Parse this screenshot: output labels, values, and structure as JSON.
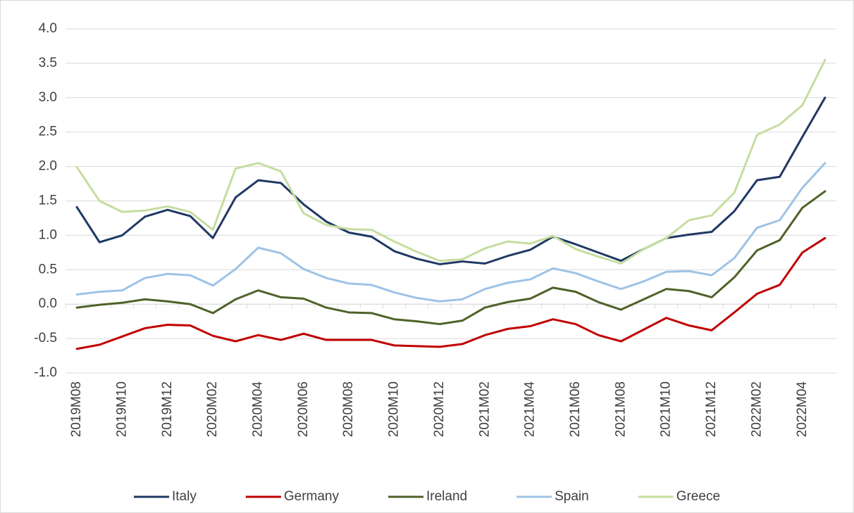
{
  "chart_data": {
    "type": "line",
    "categories": [
      "2019M08",
      null,
      "2019M10",
      null,
      "2019M12",
      null,
      "2020M02",
      null,
      "2020M04",
      null,
      "2020M06",
      null,
      "2020M08",
      null,
      "2020M10",
      null,
      "2020M12",
      null,
      "2021M02",
      null,
      "2021M04",
      null,
      "2021M06",
      null,
      "2021M08",
      null,
      "2021M10",
      null,
      "2021M12",
      null,
      "2022M02",
      null,
      "2022M04",
      null
    ],
    "series": [
      {
        "name": "Italy",
        "color": "#1f3864",
        "values": [
          1.41,
          0.9,
          1.0,
          1.27,
          1.37,
          1.28,
          0.96,
          1.55,
          1.8,
          1.76,
          1.45,
          1.2,
          1.04,
          0.98,
          0.77,
          0.66,
          0.58,
          0.62,
          0.59,
          0.7,
          0.79,
          0.98,
          0.87,
          0.75,
          0.63,
          0.8,
          0.96,
          1.01,
          1.05,
          1.35,
          1.8,
          1.85,
          2.43,
          3.0
        ]
      },
      {
        "name": "Germany",
        "color": "#c00000",
        "values": [
          -0.65,
          -0.59,
          -0.47,
          -0.35,
          -0.3,
          -0.31,
          -0.46,
          -0.54,
          -0.45,
          -0.52,
          -0.43,
          -0.52,
          -0.52,
          -0.52,
          -0.6,
          -0.61,
          -0.62,
          -0.58,
          -0.45,
          -0.36,
          -0.32,
          -0.22,
          -0.29,
          -0.45,
          -0.54,
          -0.37,
          -0.2,
          -0.31,
          -0.38,
          -0.12,
          0.15,
          0.28,
          0.75,
          0.96
        ]
      },
      {
        "name": "Ireland",
        "color": "#4f6228",
        "values": [
          -0.05,
          -0.01,
          0.02,
          0.07,
          0.04,
          0.0,
          -0.13,
          0.07,
          0.2,
          0.1,
          0.08,
          -0.05,
          -0.12,
          -0.13,
          -0.22,
          -0.25,
          -0.29,
          -0.24,
          -0.05,
          0.03,
          0.08,
          0.24,
          0.18,
          0.03,
          -0.08,
          0.07,
          0.22,
          0.19,
          0.1,
          0.39,
          0.78,
          0.93,
          1.4,
          1.64
        ]
      },
      {
        "name": "Spain",
        "color": "#9dc3e6",
        "values": [
          0.14,
          0.18,
          0.2,
          0.38,
          0.44,
          0.42,
          0.27,
          0.51,
          0.82,
          0.74,
          0.51,
          0.38,
          0.3,
          0.28,
          0.17,
          0.09,
          0.04,
          0.07,
          0.22,
          0.31,
          0.36,
          0.52,
          0.45,
          0.33,
          0.22,
          0.33,
          0.47,
          0.48,
          0.42,
          0.67,
          1.11,
          1.22,
          1.69,
          2.05
        ]
      },
      {
        "name": "Greece",
        "color": "#c5dd9f",
        "values": [
          1.99,
          1.5,
          1.34,
          1.36,
          1.42,
          1.34,
          1.08,
          1.97,
          2.05,
          1.93,
          1.32,
          1.15,
          1.09,
          1.08,
          0.91,
          0.76,
          0.63,
          0.65,
          0.81,
          0.91,
          0.88,
          0.99,
          0.8,
          0.69,
          0.59,
          0.8,
          0.96,
          1.22,
          1.29,
          1.62,
          2.46,
          2.61,
          2.89,
          3.55
        ]
      }
    ],
    "ylim": [
      -1.0,
      4.0
    ],
    "yticks": [
      {
        "value": -1.0,
        "label": "-1.0"
      },
      -0.5,
      {
        "value": 0.0,
        "label": "0.0"
      },
      0.5,
      {
        "value": 1.0,
        "label": "1.0"
      },
      1.5,
      {
        "value": 2.0,
        "label": "2.0"
      },
      2.5,
      {
        "value": 3.0,
        "label": "3.0"
      },
      3.5,
      {
        "value": 4.0,
        "label": "4.0"
      }
    ],
    "grid": true,
    "legend": "bottom"
  }
}
